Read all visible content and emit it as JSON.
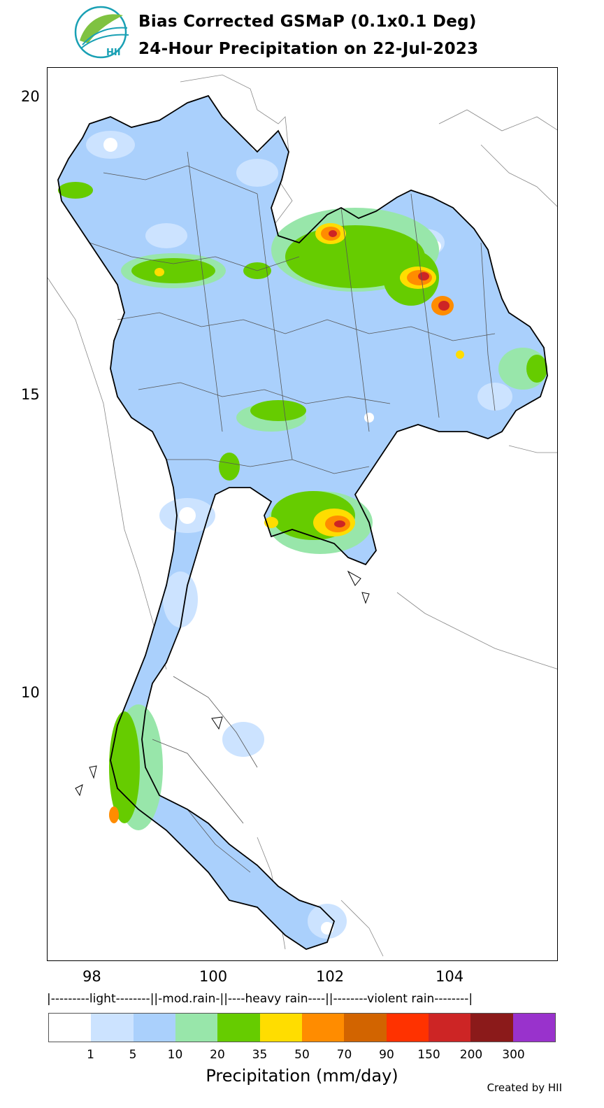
{
  "header": {
    "logo_text": "HII",
    "title_line1": "Bias Corrected GSMaP (0.1x0.1 Deg)",
    "title_line2": "24-Hour Precipitation on 22-Jul-2023"
  },
  "axes": {
    "y_ticks": [
      "20",
      "15",
      "10"
    ],
    "x_ticks": [
      "98",
      "100",
      "102",
      "104"
    ]
  },
  "categories_line": "|---------light--------||-mod.rain-||----heavy rain----||--------violent rain--------|",
  "colorbar": {
    "label": "Precipitation (mm/day)",
    "tick_labels": [
      "1",
      "5",
      "10",
      "20",
      "35",
      "50",
      "70",
      "90",
      "150",
      "200",
      "300"
    ],
    "colors": [
      "#ffffff",
      "#cce3ff",
      "#aad0fc",
      "#98e6aa",
      "#66cc00",
      "#ffdd00",
      "#ff8c00",
      "#d26400",
      "#ff3200",
      "#cd2525",
      "#8b1a1a",
      "#9932cc"
    ]
  },
  "credit": "Created by HII"
}
